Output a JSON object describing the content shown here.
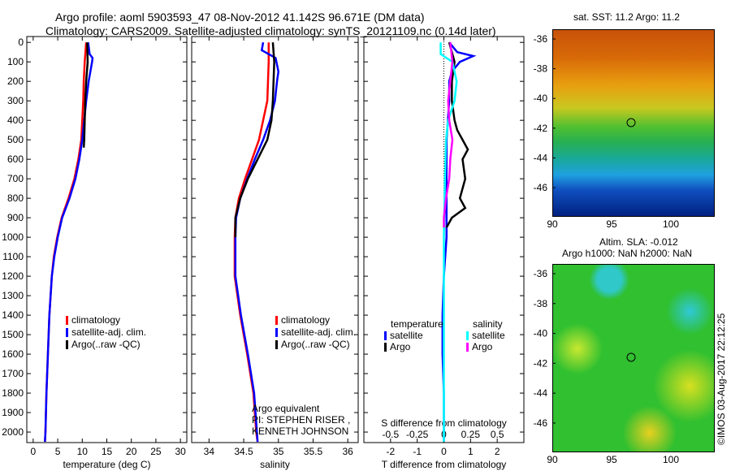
{
  "title_line1": "Argo profile: aoml 5903593_47 08-Nov-2012 41.142S 96.671E (DM data)",
  "title_line2": "Climatology: CARS2009. Satellite-adjusted climatology: synTS_20121109.nc (0.14d later)",
  "colors": {
    "climatology": "#ff0000",
    "satellite": "#0000ff",
    "argo": "#000000",
    "sal_satellite": "#00ffff",
    "sal_argo": "#ff00ff"
  },
  "chart_data": [
    {
      "type": "line",
      "xlabel": "temperature (deg C)",
      "xlim": [
        -1.3,
        31.3
      ],
      "ylim": [
        2054,
        -30
      ],
      "xticks": [
        "0",
        "5",
        "10",
        "15",
        "20",
        "25",
        "30"
      ],
      "xtick_values": [
        0,
        5,
        10,
        15,
        20,
        25,
        30
      ],
      "yticks": [
        "0",
        "100",
        "200",
        "300",
        "400",
        "500",
        "600",
        "700",
        "800",
        "900",
        "1000",
        "1100",
        "1200",
        "1300",
        "1400",
        "1500",
        "1600",
        "1700",
        "1800",
        "1900",
        "2000"
      ],
      "legend": [
        "climatology",
        "satellite-adj. clim.",
        "Argo(..raw -QC)"
      ],
      "series": [
        {
          "name": "climatology",
          "color": "#ff0000",
          "depth": [
            0,
            100,
            200,
            300,
            400,
            500,
            600,
            700,
            800,
            900,
            1000,
            1100,
            1200,
            1400,
            1600,
            1800,
            2000,
            2050
          ],
          "values": [
            10.8,
            10.5,
            10.3,
            10.2,
            10.0,
            9.8,
            9.2,
            8.4,
            7.2,
            5.8,
            4.9,
            4.2,
            3.8,
            3.3,
            3.0,
            2.7,
            2.5,
            2.4
          ]
        },
        {
          "name": "satellite-adj. clim.",
          "color": "#0000ff",
          "depth": [
            0,
            60,
            80,
            100,
            200,
            300,
            400,
            500,
            600,
            700,
            800,
            900,
            1000,
            1100,
            1200,
            1400,
            1600,
            1800,
            2000,
            2050
          ],
          "values": [
            11.2,
            11.5,
            12.1,
            12.0,
            11.3,
            10.8,
            10.4,
            10.0,
            9.4,
            8.6,
            7.4,
            5.9,
            5.0,
            4.3,
            3.8,
            3.3,
            3.0,
            2.7,
            2.5,
            2.4
          ]
        },
        {
          "name": "Argo(..raw -QC)",
          "color": "#000000",
          "depth": [
            0,
            100,
            200,
            300,
            400,
            500,
            540
          ],
          "values": [
            11.0,
            11.1,
            10.8,
            10.6,
            10.5,
            10.4,
            10.3
          ]
        }
      ]
    },
    {
      "type": "line",
      "xlabel": "salinity",
      "xlim": [
        33.75,
        36.15
      ],
      "ylim": [
        2054,
        -30
      ],
      "xticks": [
        "34",
        "34.5",
        "35",
        "35.5",
        "36"
      ],
      "xtick_values": [
        34,
        34.5,
        35,
        35.5,
        36
      ],
      "legend": [
        "climatology",
        "satellite-adj. clim.",
        "Argo(..raw -QC)"
      ],
      "annotation": [
        "Argo equivalent",
        "PI: STEPHEN RISER , KENNETH JOHNSON"
      ],
      "series": [
        {
          "name": "climatology",
          "color": "#ff0000",
          "depth": [
            0,
            100,
            200,
            300,
            400,
            500,
            600,
            700,
            800,
            900,
            1000,
            1200,
            1400,
            1600,
            1800,
            2000,
            2050
          ],
          "values": [
            34.86,
            34.86,
            34.85,
            34.84,
            34.78,
            34.72,
            34.62,
            34.52,
            34.43,
            34.38,
            34.37,
            34.37,
            34.45,
            34.55,
            34.64,
            34.68,
            34.7
          ]
        },
        {
          "name": "satellite-adj. clim.",
          "color": "#0000ff",
          "depth": [
            0,
            40,
            80,
            150,
            200,
            300,
            400,
            500,
            600,
            700,
            800,
            900,
            1000,
            1200,
            1400,
            1600,
            1800,
            2000,
            2050
          ],
          "values": [
            34.78,
            34.76,
            34.96,
            35.0,
            34.98,
            34.95,
            34.88,
            34.78,
            34.66,
            34.55,
            34.45,
            34.39,
            34.38,
            34.38,
            34.46,
            34.56,
            34.65,
            34.69,
            34.7
          ]
        },
        {
          "name": "Argo(..raw -QC)",
          "color": "#000000",
          "depth": [
            0,
            100,
            200,
            300,
            400,
            500,
            600,
            700,
            800,
            900,
            1000
          ],
          "values": [
            34.92,
            34.94,
            34.93,
            34.92,
            34.9,
            34.84,
            34.7,
            34.56,
            34.45,
            34.38,
            34.38
          ]
        }
      ]
    },
    {
      "type": "line",
      "xlabel": "T difference from climatology",
      "xlabel2": "S difference from climatology",
      "xlim": [
        -3,
        3
      ],
      "ylim": [
        2054,
        -30
      ],
      "xticks": [
        "-2",
        "-1",
        "0",
        "1",
        "2"
      ],
      "xtick_values": [
        -2,
        -1,
        0,
        1,
        2
      ],
      "xticks2": [
        "-0.5",
        "-0.25",
        "0",
        "0.25",
        "0.5"
      ],
      "xtick2_values": [
        -0.5,
        -0.25,
        0,
        0.25,
        0.5
      ],
      "legend_titles": [
        "temperature",
        "salinity"
      ],
      "legend": [
        "satellite",
        "Argo",
        "satellite",
        "Argo"
      ],
      "series": [
        {
          "name": "temperature satellite",
          "color": "#0000ff",
          "depth": [
            0,
            50,
            70,
            100,
            150,
            200,
            300,
            500,
            800,
            1000,
            1200,
            1400,
            1600,
            1800,
            2000,
            2050
          ],
          "values": [
            0.2,
            0.5,
            1.1,
            0.6,
            0.3,
            0.2,
            0.2,
            0.1,
            0.1,
            0.1,
            0.0,
            -0.05,
            -0.05,
            0.0,
            0.0,
            0.0
          ]
        },
        {
          "name": "temperature Argo",
          "color": "#000000",
          "depth": [
            0,
            100,
            200,
            300,
            400,
            450,
            500,
            550,
            600,
            700,
            800,
            850,
            900,
            950
          ],
          "values": [
            0.2,
            0.4,
            0.3,
            0.3,
            0.4,
            0.5,
            0.7,
            0.9,
            0.7,
            0.8,
            0.6,
            0.8,
            0.3,
            0.1
          ]
        },
        {
          "name": "salinity satellite",
          "color": "#00ffff",
          "depth": [
            0,
            60,
            100,
            200,
            300,
            400,
            500,
            700,
            1000,
            1400,
            1800,
            2050
          ],
          "values": [
            -0.03,
            -0.03,
            0.08,
            0.12,
            0.1,
            0.04,
            0.02,
            0.01,
            0.0,
            0.0,
            0.0,
            0.0
          ]
        },
        {
          "name": "salinity Argo",
          "color": "#ff00ff",
          "depth": [
            0,
            100,
            200,
            300,
            400,
            500,
            600,
            700,
            800,
            900,
            950
          ],
          "values": [
            0.06,
            0.08,
            0.06,
            0.04,
            0.05,
            0.08,
            0.06,
            0.05,
            0.02,
            0.0,
            0.0
          ]
        }
      ]
    }
  ],
  "map_sst": {
    "title": "sat. SST: 11.2 Argo: 11.2",
    "yticks": [
      "-36",
      "-38",
      "-40",
      "-42",
      "-44",
      "-46"
    ],
    "xticks": [
      "90",
      "95",
      "100"
    ]
  },
  "map_sla": {
    "title1": "Altim. SLA: -0.012",
    "title2": "Argo h1000: NaN h2000: NaN",
    "yticks": [
      "-36",
      "-38",
      "-40",
      "-42",
      "-44",
      "-46"
    ],
    "xticks": [
      "90",
      "95",
      "100"
    ]
  },
  "credit": "©IMOS 03-Aug-2017 22:12:25"
}
